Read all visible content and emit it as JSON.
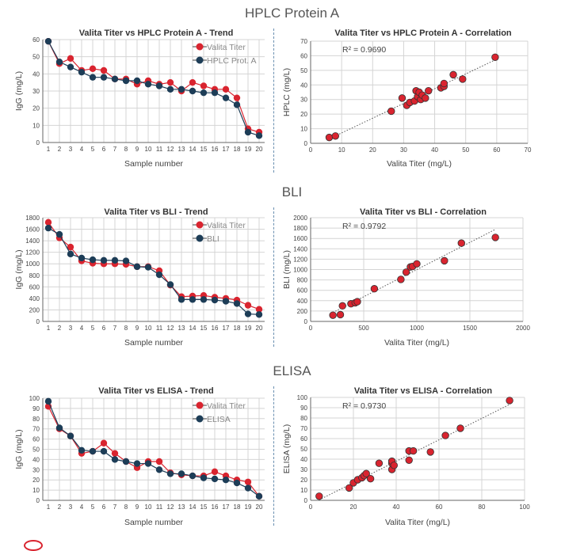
{
  "sections": [
    {
      "title": "HPLC Protein A"
    },
    {
      "title": "BLI"
    },
    {
      "title": "ELISA"
    }
  ],
  "colors": {
    "valita": "#d9242f",
    "ref": "#1d3d57",
    "grid": "#d4d4d4",
    "axis": "#666666",
    "trend_line": "#555555"
  },
  "chart_data": [
    {
      "id": "hplc-trend",
      "type": "line",
      "title": "Valita Titer vs HPLC Protein A - Trend",
      "xlabel": "Sample number",
      "ylabel": "IgG (mg/L)",
      "categories": [
        "1",
        "2",
        "3",
        "4",
        "5",
        "6",
        "7",
        "8",
        "9",
        "10",
        "11",
        "12",
        "13",
        "14",
        "15",
        "16",
        "17",
        "18",
        "19",
        "20"
      ],
      "ylim": [
        0,
        60
      ],
      "yticks": [
        0,
        10,
        20,
        30,
        40,
        50,
        60
      ],
      "series": [
        {
          "name": "Valita Titer",
          "values": [
            59,
            46,
            49,
            42,
            43,
            42,
            37,
            37,
            34,
            36,
            34,
            35,
            30,
            35,
            33,
            31,
            31,
            26,
            8,
            6
          ]
        },
        {
          "name": "HPLC Prot. A",
          "values": [
            59,
            47,
            44,
            41,
            38,
            38,
            37,
            36,
            36,
            34,
            33,
            31,
            31,
            30,
            29,
            29,
            26,
            22,
            6,
            4
          ]
        }
      ],
      "legend": "top-right"
    },
    {
      "id": "hplc-corr",
      "type": "scatter",
      "title": "Valita Titer vs HPLC Protein A - Correlation",
      "xlabel": "Valita Titer (mg/L)",
      "ylabel": "HPLC (mg/L)",
      "xlim": [
        0,
        70
      ],
      "ylim": [
        0,
        70
      ],
      "xticks": [
        0,
        10,
        20,
        30,
        40,
        50,
        60,
        70
      ],
      "yticks": [
        0,
        10,
        20,
        30,
        40,
        50,
        60,
        70
      ],
      "r2": "R² = 0.9690",
      "x": [
        6,
        8,
        26,
        29.5,
        31,
        32,
        33.5,
        34,
        34.5,
        35,
        35.5,
        36,
        37,
        38,
        42,
        43,
        43,
        46,
        49,
        59.5
      ],
      "y": [
        4,
        5,
        22,
        31,
        26,
        28,
        29,
        36,
        32,
        35,
        30,
        33,
        31,
        36,
        38,
        39,
        41,
        47,
        44,
        59
      ]
    },
    {
      "id": "bli-trend",
      "type": "line",
      "title": "Valita Titer vs BLI - Trend",
      "xlabel": "Sample number",
      "ylabel": "IgG (mg/L)",
      "categories": [
        "1",
        "2",
        "3",
        "4",
        "5",
        "6",
        "7",
        "8",
        "9",
        "10",
        "11",
        "12",
        "13",
        "14",
        "15",
        "16",
        "17",
        "18",
        "19",
        "20"
      ],
      "ylim": [
        0,
        1800
      ],
      "yticks": [
        0,
        200,
        400,
        600,
        800,
        1000,
        1200,
        1400,
        1600,
        1800
      ],
      "series": [
        {
          "name": "Valita Titer",
          "values": [
            1720,
            1450,
            1290,
            1050,
            1010,
            1000,
            1000,
            990,
            950,
            950,
            880,
            630,
            430,
            440,
            450,
            420,
            400,
            370,
            280,
            210
          ]
        },
        {
          "name": "BLI",
          "values": [
            1620,
            1510,
            1170,
            1100,
            1070,
            1060,
            1060,
            1050,
            950,
            940,
            810,
            640,
            380,
            380,
            380,
            370,
            350,
            310,
            130,
            120
          ]
        }
      ],
      "legend": "top-right"
    },
    {
      "id": "bli-corr",
      "type": "scatter",
      "title": "Valita Titer vs BLI - Correlation",
      "xlabel": "Valita Titer (mg/L)",
      "ylabel": "BLI (mg/L)",
      "xlim": [
        0,
        2000
      ],
      "ylim": [
        0,
        2000
      ],
      "xticks": [
        0,
        500,
        1000,
        1500,
        2000
      ],
      "xticklabels": [
        "0",
        "500",
        "1000",
        "1500",
        "2000"
      ],
      "yticks": [
        0,
        200,
        400,
        600,
        800,
        1000,
        1200,
        1400,
        1600,
        1800,
        2000
      ],
      "r2": "R² = 0.9792",
      "x": [
        210,
        280,
        300,
        380,
        420,
        440,
        600,
        850,
        900,
        940,
        960,
        1000,
        1260,
        1420,
        1740
      ],
      "y": [
        120,
        130,
        300,
        340,
        360,
        380,
        630,
        810,
        950,
        1050,
        1060,
        1110,
        1170,
        1510,
        1620
      ]
    },
    {
      "id": "elisa-trend",
      "type": "line",
      "title": "Valita Titer vs ELISA - Trend",
      "xlabel": "Sample number",
      "ylabel": "IgG (mg/L)",
      "categories": [
        "1",
        "2",
        "3",
        "4",
        "5",
        "6",
        "7",
        "8",
        "9",
        "10",
        "11",
        "12",
        "13",
        "14",
        "15",
        "16",
        "17",
        "18",
        "19",
        "20"
      ],
      "ylim": [
        0,
        100
      ],
      "yticks": [
        0,
        10,
        20,
        30,
        40,
        50,
        60,
        70,
        80,
        90,
        100
      ],
      "series": [
        {
          "name": "Valita Titer",
          "values": [
            92,
            70,
            63,
            46,
            48,
            56,
            46,
            38,
            32,
            38,
            38,
            27,
            25,
            24,
            24,
            28,
            24,
            20,
            18,
            4
          ]
        },
        {
          "name": "ELISA",
          "values": [
            97,
            71,
            63,
            49,
            48,
            48,
            40,
            38,
            36,
            36,
            30,
            26,
            26,
            24,
            22,
            21,
            20,
            17,
            12,
            4
          ]
        }
      ],
      "legend": "top-right"
    },
    {
      "id": "elisa-corr",
      "type": "scatter",
      "title": "Valita Titer vs ELISA - Correlation",
      "xlabel": "Valita Titer (mg/L)",
      "ylabel": "ELISA (mg/L)",
      "xlim": [
        0,
        100
      ],
      "ylim": [
        0,
        100
      ],
      "xticks": [
        0,
        20,
        40,
        60,
        80,
        100
      ],
      "yticks": [
        0,
        10,
        20,
        30,
        40,
        50,
        60,
        70,
        80,
        90,
        100
      ],
      "r2": "R² = 0.9730",
      "x": [
        4,
        18,
        20,
        22,
        24,
        25,
        26,
        28,
        32,
        38,
        38,
        38,
        39,
        46,
        46,
        48,
        56,
        63,
        70,
        93
      ],
      "y": [
        4,
        12,
        17,
        20,
        22,
        24,
        26,
        21,
        36,
        30,
        36,
        38,
        34,
        39,
        48,
        48,
        47,
        63,
        70,
        97
      ]
    }
  ]
}
